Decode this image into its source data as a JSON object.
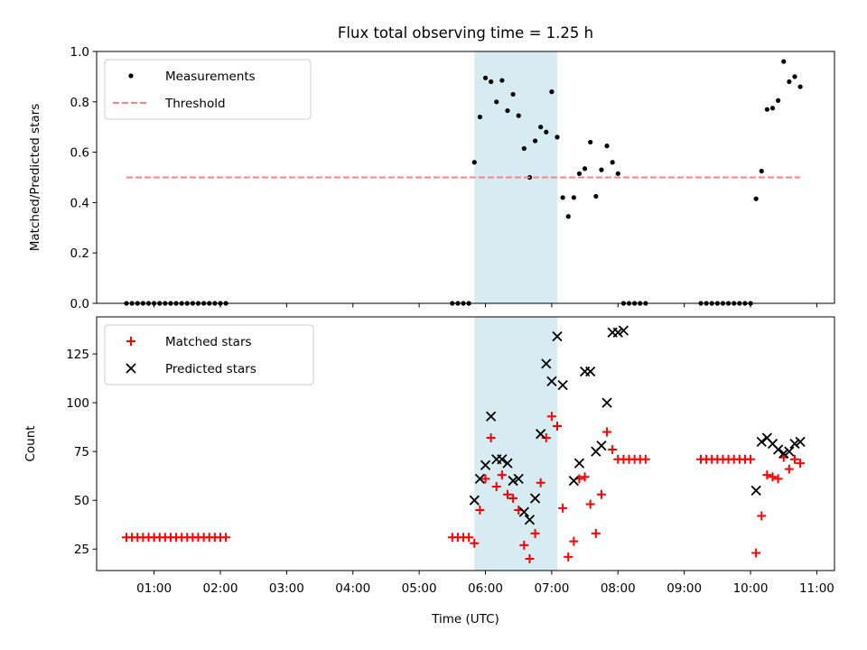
{
  "chart_data": [
    {
      "type": "scatter",
      "title": "Flux total observing time = 1.25 h",
      "xlabel": "",
      "ylabel": "Matched/Predicted stars",
      "ylim": [
        0,
        1.0
      ],
      "yticks": [
        "0.0",
        "0.2",
        "0.4",
        "0.6",
        "0.8",
        "1.0"
      ],
      "xticks": [
        "01:00",
        "02:00",
        "03:00",
        "04:00",
        "05:00",
        "06:00",
        "07:00",
        "08:00",
        "09:00",
        "10:00",
        "11:00"
      ],
      "show_xtick_labels": false,
      "legend_position": "upper-left",
      "shaded_interval": {
        "start": "05:50",
        "end": "07:05",
        "color": "#add8e6"
      },
      "series": [
        {
          "name": "Measurements",
          "marker": "dot",
          "color": "#000000",
          "points": [
            [
              "00:35",
              0
            ],
            [
              "00:40",
              0
            ],
            [
              "00:45",
              0
            ],
            [
              "00:50",
              0
            ],
            [
              "00:55",
              0
            ],
            [
              "01:00",
              0
            ],
            [
              "01:05",
              0
            ],
            [
              "01:10",
              0
            ],
            [
              "01:15",
              0
            ],
            [
              "01:20",
              0
            ],
            [
              "01:25",
              0
            ],
            [
              "01:30",
              0
            ],
            [
              "01:35",
              0
            ],
            [
              "01:40",
              0
            ],
            [
              "01:45",
              0
            ],
            [
              "01:50",
              0
            ],
            [
              "01:55",
              0
            ],
            [
              "02:00",
              0
            ],
            [
              "02:05",
              0
            ],
            [
              "05:30",
              0
            ],
            [
              "05:35",
              0
            ],
            [
              "05:40",
              0
            ],
            [
              "05:45",
              0
            ],
            [
              "05:50",
              0.56
            ],
            [
              "05:55",
              0.74
            ],
            [
              "06:00",
              0.895
            ],
            [
              "06:05",
              0.88
            ],
            [
              "06:10",
              0.8
            ],
            [
              "06:15",
              0.885
            ],
            [
              "06:20",
              0.765
            ],
            [
              "06:25",
              0.83
            ],
            [
              "06:30",
              0.745
            ],
            [
              "06:35",
              0.615
            ],
            [
              "06:40",
              0.5
            ],
            [
              "06:45",
              0.645
            ],
            [
              "06:50",
              0.7
            ],
            [
              "06:55",
              0.68
            ],
            [
              "07:00",
              0.84
            ],
            [
              "07:05",
              0.66
            ],
            [
              "07:10",
              0.42
            ],
            [
              "07:15",
              0.345
            ],
            [
              "07:20",
              0.42
            ],
            [
              "07:25",
              0.515
            ],
            [
              "07:30",
              0.535
            ],
            [
              "07:35",
              0.64
            ],
            [
              "07:40",
              0.425
            ],
            [
              "07:45",
              0.53
            ],
            [
              "07:50",
              0.625
            ],
            [
              "07:55",
              0.56
            ],
            [
              "08:00",
              0.515
            ],
            [
              "08:05",
              0
            ],
            [
              "08:10",
              0
            ],
            [
              "08:15",
              0
            ],
            [
              "08:20",
              0
            ],
            [
              "08:25",
              0
            ],
            [
              "09:15",
              0
            ],
            [
              "09:20",
              0
            ],
            [
              "09:25",
              0
            ],
            [
              "09:30",
              0
            ],
            [
              "09:35",
              0
            ],
            [
              "09:40",
              0
            ],
            [
              "09:45",
              0
            ],
            [
              "09:50",
              0
            ],
            [
              "09:55",
              0
            ],
            [
              "10:00",
              0
            ],
            [
              "10:05",
              0.415
            ],
            [
              "10:10",
              0.525
            ],
            [
              "10:15",
              0.77
            ],
            [
              "10:20",
              0.775
            ],
            [
              "10:25",
              0.805
            ],
            [
              "10:30",
              0.96
            ],
            [
              "10:35",
              0.88
            ],
            [
              "10:40",
              0.9
            ],
            [
              "10:45",
              0.86
            ]
          ]
        },
        {
          "name": "Threshold",
          "marker": "dashed-line",
          "color": "#ff8080",
          "points": [
            [
              "00:35",
              0.5
            ],
            [
              "10:45",
              0.5
            ]
          ]
        }
      ]
    },
    {
      "type": "scatter",
      "title": "",
      "xlabel": "Time (UTC)",
      "ylabel": "Count",
      "ylim": [
        14,
        144
      ],
      "yticks": [
        "25",
        "50",
        "75",
        "100",
        "125"
      ],
      "xticks": [
        "01:00",
        "02:00",
        "03:00",
        "04:00",
        "05:00",
        "06:00",
        "07:00",
        "08:00",
        "09:00",
        "10:00",
        "11:00"
      ],
      "show_xtick_labels": true,
      "legend_position": "upper-left",
      "shaded_interval": {
        "start": "05:50",
        "end": "07:05",
        "color": "#add8e6"
      },
      "series": [
        {
          "name": "Matched stars",
          "marker": "plus",
          "color": "#ff0000",
          "points": [
            [
              "00:35",
              31
            ],
            [
              "00:40",
              31
            ],
            [
              "00:45",
              31
            ],
            [
              "00:50",
              31
            ],
            [
              "00:55",
              31
            ],
            [
              "01:00",
              31
            ],
            [
              "01:05",
              31
            ],
            [
              "01:10",
              31
            ],
            [
              "01:15",
              31
            ],
            [
              "01:20",
              31
            ],
            [
              "01:25",
              31
            ],
            [
              "01:30",
              31
            ],
            [
              "01:35",
              31
            ],
            [
              "01:40",
              31
            ],
            [
              "01:45",
              31
            ],
            [
              "01:50",
              31
            ],
            [
              "01:55",
              31
            ],
            [
              "02:00",
              31
            ],
            [
              "02:05",
              31
            ],
            [
              "05:30",
              31
            ],
            [
              "05:35",
              31
            ],
            [
              "05:40",
              31
            ],
            [
              "05:45",
              31
            ],
            [
              "05:50",
              28
            ],
            [
              "05:55",
              45
            ],
            [
              "06:00",
              61
            ],
            [
              "06:05",
              82
            ],
            [
              "06:10",
              57
            ],
            [
              "06:15",
              63
            ],
            [
              "06:20",
              53
            ],
            [
              "06:25",
              51
            ],
            [
              "06:30",
              45
            ],
            [
              "06:35",
              27
            ],
            [
              "06:40",
              20
            ],
            [
              "06:45",
              33
            ],
            [
              "06:50",
              59
            ],
            [
              "06:55",
              82
            ],
            [
              "07:00",
              93
            ],
            [
              "07:05",
              88
            ],
            [
              "07:10",
              46
            ],
            [
              "07:15",
              21
            ],
            [
              "07:20",
              29
            ],
            [
              "07:25",
              61
            ],
            [
              "07:30",
              62
            ],
            [
              "07:35",
              48
            ],
            [
              "07:40",
              33
            ],
            [
              "07:45",
              53
            ],
            [
              "07:50",
              85
            ],
            [
              "07:55",
              76
            ],
            [
              "08:00",
              71
            ],
            [
              "08:05",
              71
            ],
            [
              "08:10",
              71
            ],
            [
              "08:15",
              71
            ],
            [
              "08:20",
              71
            ],
            [
              "08:25",
              71
            ],
            [
              "09:15",
              71
            ],
            [
              "09:20",
              71
            ],
            [
              "09:25",
              71
            ],
            [
              "09:30",
              71
            ],
            [
              "09:35",
              71
            ],
            [
              "09:40",
              71
            ],
            [
              "09:45",
              71
            ],
            [
              "09:50",
              71
            ],
            [
              "09:55",
              71
            ],
            [
              "10:00",
              71
            ],
            [
              "10:05",
              23
            ],
            [
              "10:10",
              42
            ],
            [
              "10:15",
              63
            ],
            [
              "10:20",
              62
            ],
            [
              "10:25",
              61
            ],
            [
              "10:30",
              72
            ],
            [
              "10:35",
              66
            ],
            [
              "10:40",
              71
            ],
            [
              "10:45",
              69
            ]
          ]
        },
        {
          "name": "Predicted stars",
          "marker": "x",
          "color": "#000000",
          "points": [
            [
              "05:50",
              50
            ],
            [
              "05:55",
              61
            ],
            [
              "06:00",
              68
            ],
            [
              "06:05",
              93
            ],
            [
              "06:10",
              71
            ],
            [
              "06:15",
              71
            ],
            [
              "06:20",
              69
            ],
            [
              "06:25",
              60
            ],
            [
              "06:30",
              61
            ],
            [
              "06:35",
              44
            ],
            [
              "06:40",
              40
            ],
            [
              "06:45",
              51
            ],
            [
              "06:50",
              84
            ],
            [
              "06:55",
              120
            ],
            [
              "07:00",
              111
            ],
            [
              "07:05",
              134
            ],
            [
              "07:10",
              109
            ],
            [
              "07:20",
              60
            ],
            [
              "07:25",
              69
            ],
            [
              "07:30",
              116
            ],
            [
              "07:35",
              116
            ],
            [
              "07:40",
              75
            ],
            [
              "07:45",
              78
            ],
            [
              "07:50",
              100
            ],
            [
              "07:55",
              136
            ],
            [
              "08:00",
              136
            ],
            [
              "08:05",
              137
            ],
            [
              "10:05",
              55
            ],
            [
              "10:10",
              80
            ],
            [
              "10:15",
              82
            ],
            [
              "10:20",
              79
            ],
            [
              "10:25",
              76
            ],
            [
              "10:30",
              74
            ],
            [
              "10:35",
              75
            ],
            [
              "10:40",
              79
            ],
            [
              "10:45",
              80
            ]
          ]
        }
      ]
    }
  ]
}
